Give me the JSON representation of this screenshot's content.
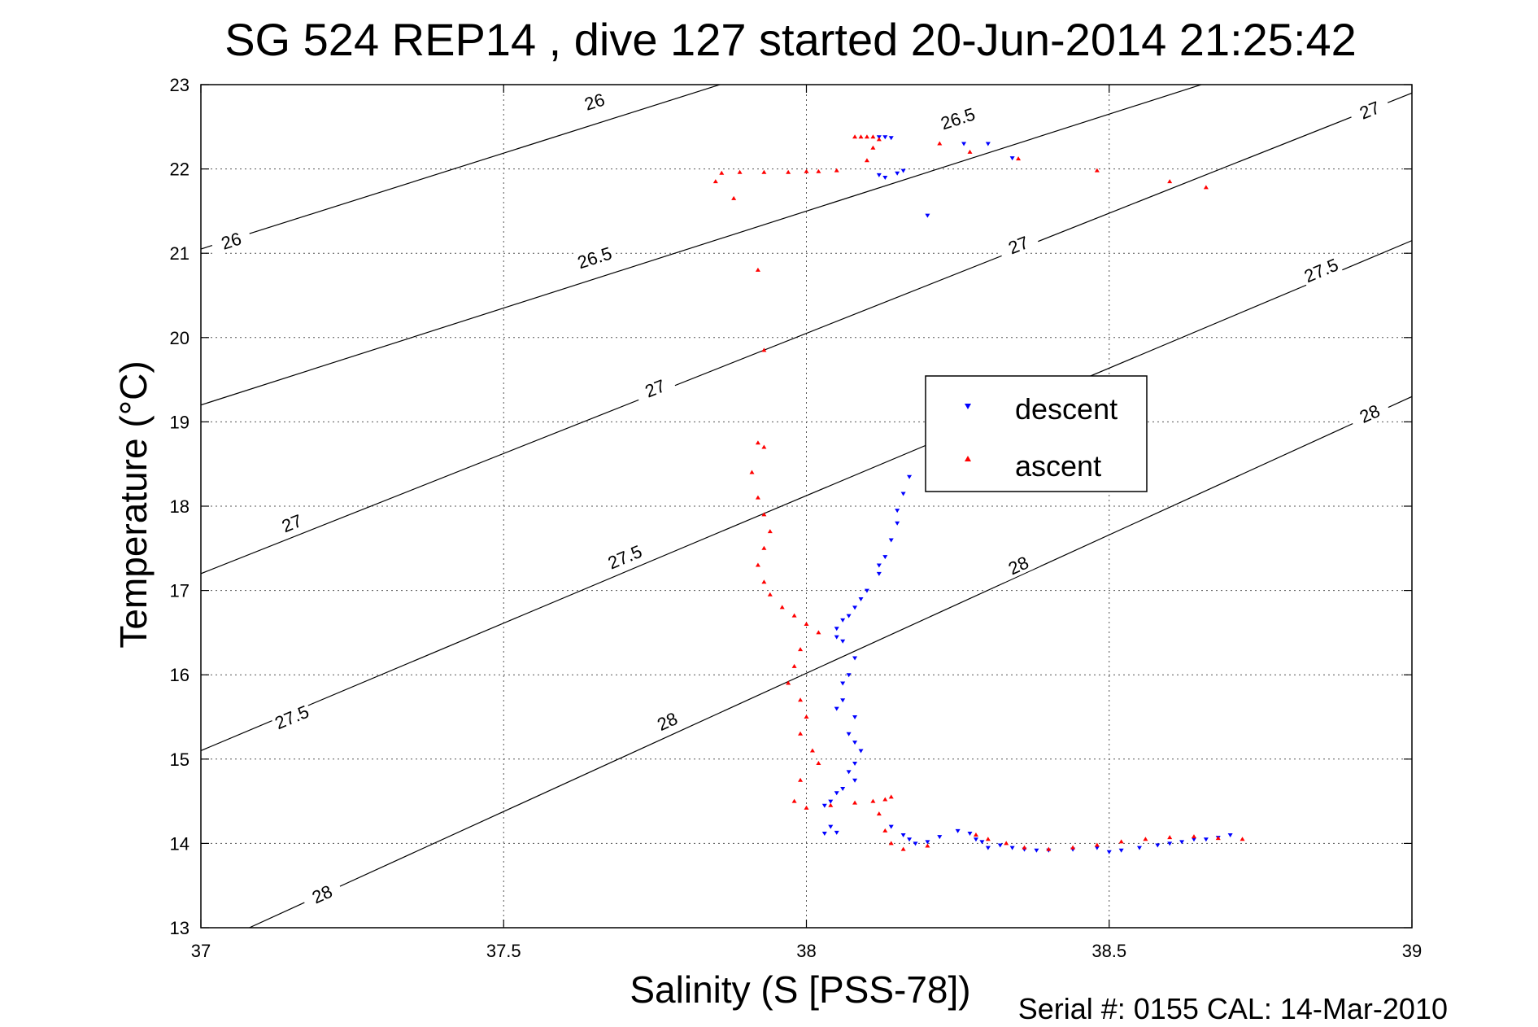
{
  "header": {
    "title": "SG 524   REP14  , dive 127 started 20-Jun-2014 21:25:42",
    "footer": "Serial #: 0155  CAL: 14-Mar-2010"
  },
  "chart_data": {
    "type": "scatter",
    "title": "SG 524   REP14  , dive 127 started 20-Jun-2014 21:25:42",
    "xlabel": "Salinity (S [PSS-78])",
    "ylabel": "Temperature (°C)",
    "xlim": [
      37,
      39
    ],
    "ylim": [
      13,
      23
    ],
    "x_ticks": [
      "37",
      "37.5",
      "38",
      "38.5",
      "39"
    ],
    "y_ticks": [
      "13",
      "14",
      "15",
      "16",
      "17",
      "18",
      "19",
      "20",
      "21",
      "22",
      "23"
    ],
    "grid": true,
    "legend_position": "center-right",
    "density_contours": [
      {
        "label": "26",
        "points": [
          [
            37,
            21.05
          ],
          [
            39,
            25.6
          ]
        ],
        "labels_at": [
          [
            37.05,
            21.15
          ],
          [
            37.65,
            22.8
          ]
        ]
      },
      {
        "label": "26.5",
        "points": [
          [
            37,
            19.2
          ],
          [
            39,
            23.8
          ]
        ],
        "labels_at": [
          [
            37.65,
            20.95
          ],
          [
            38.25,
            22.6
          ]
        ]
      },
      {
        "label": "27",
        "points": [
          [
            37,
            17.2
          ],
          [
            39,
            22.9
          ]
        ],
        "labels_at": [
          [
            37.15,
            17.8
          ],
          [
            37.75,
            19.4
          ],
          [
            38.35,
            21.1
          ],
          [
            38.93,
            22.7
          ]
        ]
      },
      {
        "label": "27.5",
        "points": [
          [
            37,
            15.1
          ],
          [
            39,
            21.15
          ]
        ],
        "labels_at": [
          [
            37.15,
            15.5
          ],
          [
            37.7,
            17.4
          ],
          [
            38.85,
            20.8
          ]
        ]
      },
      {
        "label": "28",
        "points": [
          [
            37.08,
            13
          ],
          [
            39,
            19.3
          ]
        ],
        "labels_at": [
          [
            37.2,
            13.4
          ],
          [
            37.77,
            15.45
          ],
          [
            38.35,
            17.3
          ],
          [
            38.93,
            19.1
          ]
        ]
      }
    ],
    "series": [
      {
        "name": "descent",
        "color": "#0000ff",
        "marker": "triangle-down",
        "points": [
          [
            38.12,
            22.38
          ],
          [
            38.13,
            22.38
          ],
          [
            38.14,
            22.37
          ],
          [
            38.12,
            21.93
          ],
          [
            38.13,
            21.9
          ],
          [
            38.15,
            21.95
          ],
          [
            38.16,
            21.98
          ],
          [
            38.2,
            21.45
          ],
          [
            38.26,
            22.3
          ],
          [
            38.3,
            22.3
          ],
          [
            38.34,
            22.13
          ],
          [
            38.17,
            18.35
          ],
          [
            38.16,
            18.15
          ],
          [
            38.15,
            17.95
          ],
          [
            38.15,
            17.8
          ],
          [
            38.14,
            17.6
          ],
          [
            38.13,
            17.4
          ],
          [
            38.12,
            17.3
          ],
          [
            38.12,
            17.2
          ],
          [
            38.1,
            17.0
          ],
          [
            38.09,
            16.9
          ],
          [
            38.08,
            16.8
          ],
          [
            38.07,
            16.7
          ],
          [
            38.06,
            16.65
          ],
          [
            38.05,
            16.55
          ],
          [
            38.05,
            16.45
          ],
          [
            38.06,
            16.4
          ],
          [
            38.08,
            16.2
          ],
          [
            38.07,
            16.0
          ],
          [
            38.06,
            15.9
          ],
          [
            38.06,
            15.7
          ],
          [
            38.05,
            15.6
          ],
          [
            38.08,
            15.5
          ],
          [
            38.07,
            15.3
          ],
          [
            38.08,
            15.2
          ],
          [
            38.09,
            15.1
          ],
          [
            38.08,
            14.95
          ],
          [
            38.07,
            14.85
          ],
          [
            38.08,
            14.75
          ],
          [
            38.06,
            14.65
          ],
          [
            38.05,
            14.6
          ],
          [
            38.04,
            14.5
          ],
          [
            38.03,
            14.45
          ],
          [
            38.04,
            14.2
          ],
          [
            38.03,
            14.12
          ],
          [
            38.05,
            14.13
          ],
          [
            38.14,
            14.2
          ],
          [
            38.16,
            14.1
          ],
          [
            38.17,
            14.05
          ],
          [
            38.18,
            14.0
          ],
          [
            38.2,
            14.02
          ],
          [
            38.22,
            14.08
          ],
          [
            38.25,
            14.15
          ],
          [
            38.27,
            14.12
          ],
          [
            38.28,
            14.05
          ],
          [
            38.29,
            14.02
          ],
          [
            38.3,
            13.95
          ],
          [
            38.32,
            13.98
          ],
          [
            38.34,
            13.95
          ],
          [
            38.36,
            13.93
          ],
          [
            38.38,
            13.92
          ],
          [
            38.4,
            13.92
          ],
          [
            38.44,
            13.93
          ],
          [
            38.48,
            13.95
          ],
          [
            38.5,
            13.9
          ],
          [
            38.52,
            13.92
          ],
          [
            38.55,
            13.95
          ],
          [
            38.58,
            13.98
          ],
          [
            38.6,
            14.0
          ],
          [
            38.62,
            14.02
          ],
          [
            38.64,
            14.05
          ],
          [
            38.66,
            14.05
          ],
          [
            38.68,
            14.07
          ],
          [
            38.7,
            14.1
          ]
        ]
      },
      {
        "name": "ascent",
        "color": "#ff0000",
        "marker": "triangle-up",
        "points": [
          [
            38.08,
            22.38
          ],
          [
            38.09,
            22.38
          ],
          [
            38.1,
            22.38
          ],
          [
            38.11,
            22.38
          ],
          [
            38.12,
            22.35
          ],
          [
            38.11,
            22.25
          ],
          [
            38.1,
            22.1
          ],
          [
            38.05,
            21.98
          ],
          [
            38.02,
            21.97
          ],
          [
            38.0,
            21.97
          ],
          [
            37.97,
            21.96
          ],
          [
            37.93,
            21.96
          ],
          [
            37.89,
            21.96
          ],
          [
            37.86,
            21.95
          ],
          [
            37.85,
            21.85
          ],
          [
            37.88,
            21.65
          ],
          [
            37.92,
            20.8
          ],
          [
            37.93,
            19.85
          ],
          [
            37.92,
            18.75
          ],
          [
            37.93,
            18.7
          ],
          [
            37.91,
            18.4
          ],
          [
            37.92,
            18.1
          ],
          [
            37.93,
            17.9
          ],
          [
            37.94,
            17.7
          ],
          [
            37.93,
            17.5
          ],
          [
            37.92,
            17.3
          ],
          [
            37.93,
            17.1
          ],
          [
            37.94,
            16.95
          ],
          [
            37.96,
            16.8
          ],
          [
            37.98,
            16.7
          ],
          [
            38.0,
            16.6
          ],
          [
            38.02,
            16.5
          ],
          [
            37.99,
            16.3
          ],
          [
            37.98,
            16.1
          ],
          [
            37.97,
            15.9
          ],
          [
            37.99,
            15.7
          ],
          [
            38.0,
            15.5
          ],
          [
            37.99,
            15.3
          ],
          [
            38.01,
            15.1
          ],
          [
            38.02,
            14.95
          ],
          [
            37.99,
            14.75
          ],
          [
            37.98,
            14.5
          ],
          [
            38.0,
            14.42
          ],
          [
            38.04,
            14.45
          ],
          [
            38.08,
            14.48
          ],
          [
            38.11,
            14.5
          ],
          [
            38.13,
            14.52
          ],
          [
            38.14,
            14.55
          ],
          [
            38.12,
            14.35
          ],
          [
            38.13,
            14.15
          ],
          [
            38.14,
            14.0
          ],
          [
            38.16,
            13.93
          ],
          [
            38.2,
            13.97
          ],
          [
            38.28,
            14.1
          ],
          [
            38.3,
            14.05
          ],
          [
            38.33,
            14.0
          ],
          [
            38.36,
            13.95
          ],
          [
            38.4,
            13.93
          ],
          [
            38.44,
            13.95
          ],
          [
            38.48,
            13.98
          ],
          [
            38.52,
            14.02
          ],
          [
            38.56,
            14.05
          ],
          [
            38.6,
            14.07
          ],
          [
            38.64,
            14.08
          ],
          [
            38.68,
            14.06
          ],
          [
            38.72,
            14.05
          ],
          [
            38.6,
            21.85
          ],
          [
            38.66,
            21.78
          ],
          [
            38.48,
            21.98
          ],
          [
            38.35,
            22.12
          ],
          [
            38.27,
            22.2
          ],
          [
            38.22,
            22.3
          ]
        ]
      }
    ]
  }
}
